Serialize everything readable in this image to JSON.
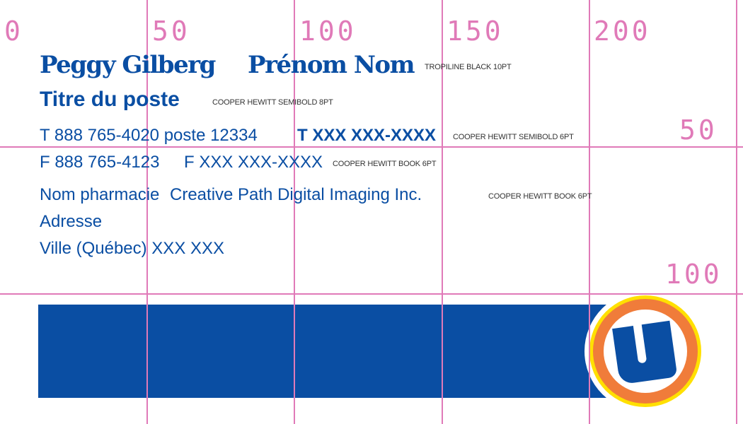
{
  "card": {
    "name_a": "Peggy Gilberg",
    "name_b": "Prénom Nom",
    "title": "Titre du poste",
    "phone_a": "T 888 765-4020 poste 12334",
    "phone_b": "T XXX XXX-XXXX",
    "fax_a": "F 888 765-4123",
    "fax_b": "F XXX XXX-XXXX",
    "company_a": "Nom pharmacie",
    "company_b": "Creative Path Digital Imaging Inc.",
    "address": "Adresse",
    "city": "Ville (Québec) XXX XXX"
  },
  "specs": {
    "name": "TROPILINE BLACK 10PT",
    "title": "COOPER HEWITT SEMIBOLD 8PT",
    "phone": "COOPER HEWITT SEMIBOLD 6PT",
    "fax": "COOPER HEWITT BOOK 6PT",
    "company": "COOPER HEWITT BOOK 6PT"
  },
  "grid": {
    "x_labels": [
      "0",
      "50",
      "100",
      "150",
      "200"
    ],
    "y_labels": [
      "50",
      "100"
    ],
    "color": "#e07ab8"
  },
  "colors": {
    "brand_blue": "#0a4ea3",
    "logo_orange": "#f07c3a",
    "logo_yellow": "#ffe000"
  },
  "logo": {
    "icon": "u-logo-icon"
  }
}
